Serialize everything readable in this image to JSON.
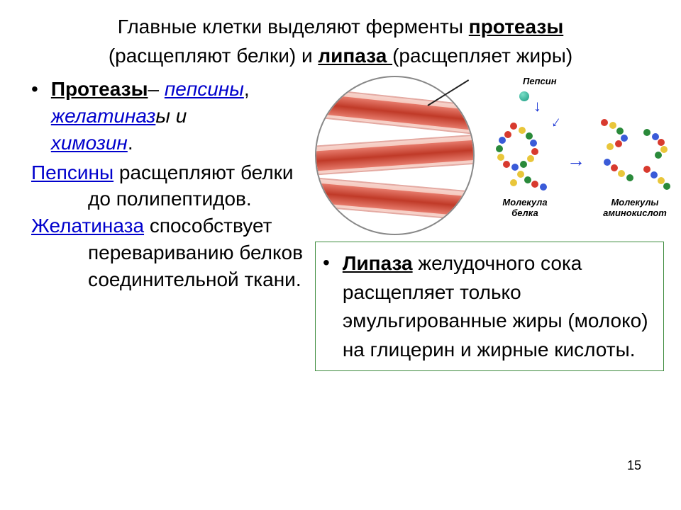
{
  "title": {
    "line1_pre": "Главные клетки выделяют ферменты ",
    "proteazy": "протеазы",
    "line2_pre": "(расщепляют белки) и ",
    "lipaza": "липаза ",
    "line2_post": "(расщепляет жиры)"
  },
  "left": {
    "proteazy_label": "Протеазы",
    "dash": "– ",
    "pepsiny": "пепсины",
    "comma": ", ",
    "gelatinazy": "желатиназ",
    "gelatinazy_tail": "ы и ",
    "himozin": "химозин",
    "dot": ".",
    "pepsiny2": "Пепсины",
    "pepsiny2_text": " расщепляют белки до полипептидов.",
    "gelatinaza": "Желатиназа",
    "gelatinaza_text": " способствует перевариванию белков соединительной ткани."
  },
  "diagram": {
    "pepsin_label": "Пепсин",
    "protein_label": "Молекула\nбелка",
    "amino_label": "Молекулы\nаминокислот",
    "circle_border": "#888888",
    "tissue_light": "#f3b4a4",
    "tissue_dark": "#c03a28",
    "arrow_color": "#1934d4",
    "bead_colors": [
      "#d83a2e",
      "#2a8a3a",
      "#e9c63a",
      "#3a5bd8",
      "#d83a2e",
      "#e9c63a",
      "#2a8a3a",
      "#3a5bd8",
      "#d83a2e",
      "#e9c63a",
      "#2a8a3a",
      "#3a5bd8",
      "#d83a2e",
      "#e9c63a",
      "#2a8a3a",
      "#d83a2e",
      "#3a5bd8",
      "#e9c63a",
      "#2a8a3a",
      "#d83a2e"
    ]
  },
  "lipase": {
    "label": "Липаза",
    "text": " желудочного сока расщепляет только эмульгированные жиры (молоко) на глицерин и жирные кислоты.",
    "box_border": "#3d8b3d"
  },
  "page_number": "15",
  "colors": {
    "link": "#0000cc",
    "text": "#000000",
    "bg": "#ffffff"
  },
  "fonts": {
    "title_size_pt": 21,
    "body_size_pt": 21,
    "label_size_pt": 10
  }
}
